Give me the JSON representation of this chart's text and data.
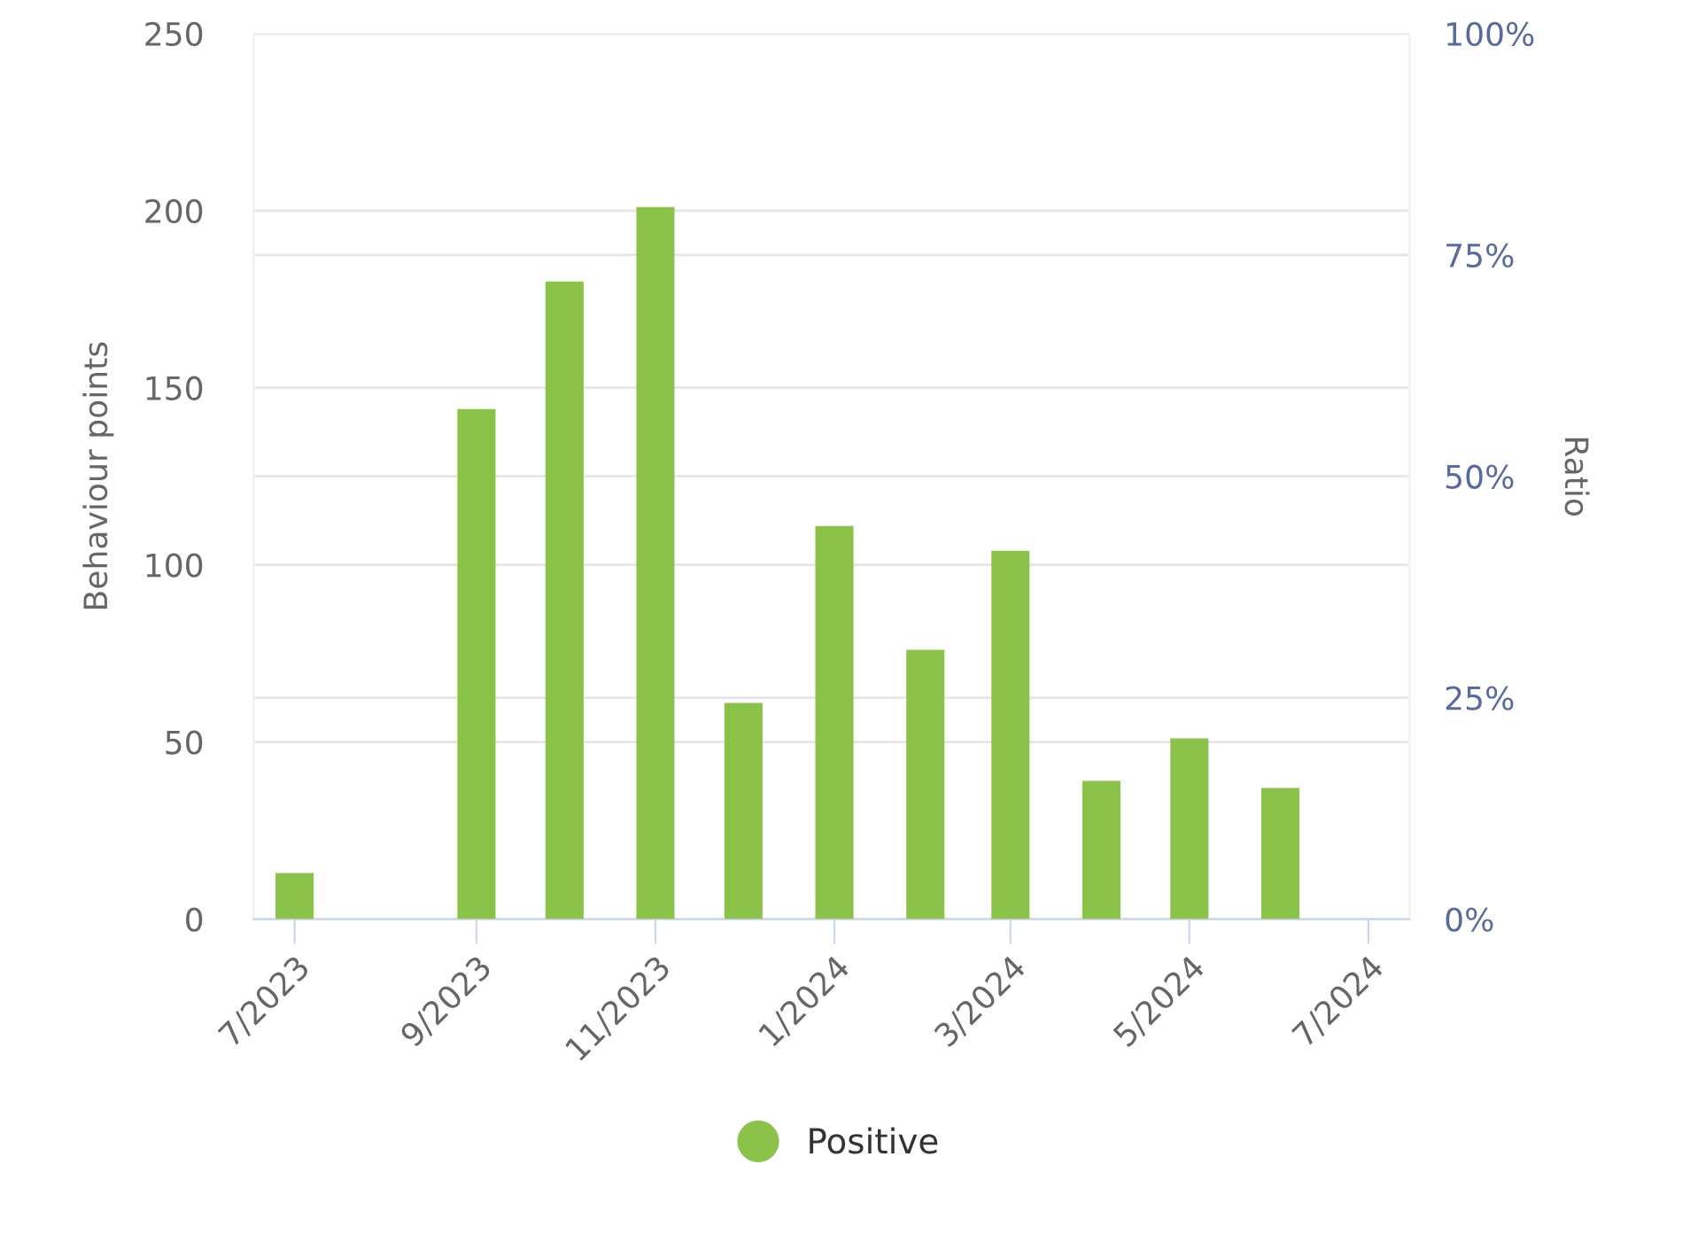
{
  "chart_data": {
    "type": "bar",
    "x": [
      "2023-07",
      "2023-08",
      "2023-09",
      "2023-10",
      "2023-11",
      "2023-12",
      "2024-01",
      "2024-02",
      "2024-03",
      "2024-04",
      "2024-05",
      "2024-06"
    ],
    "series": [
      {
        "name": "Positive",
        "color": "#8bc34a",
        "values": [
          13,
          null,
          144,
          180,
          201,
          61,
          111,
          76,
          104,
          39,
          51,
          37
        ]
      }
    ],
    "ylabel": "Behaviour points",
    "y2label": "Ratio",
    "ylim": [
      0,
      250
    ],
    "yticks": [
      0,
      50,
      100,
      150,
      200,
      250
    ],
    "y2lim": [
      0,
      100
    ],
    "y2ticks": [
      {
        "value": 0,
        "label": "0%"
      },
      {
        "value": 25,
        "label": "25%"
      },
      {
        "value": 50,
        "label": "50%"
      },
      {
        "value": 75,
        "label": "75%"
      },
      {
        "value": 100,
        "label": "100%"
      }
    ],
    "xlim": [
      "2023-06-17",
      "2024-07-15"
    ],
    "xticks": [
      {
        "value": "2023-07",
        "label": "7/2023"
      },
      {
        "value": "2023-09",
        "label": "9/2023"
      },
      {
        "value": "2023-11",
        "label": "11/2023"
      },
      {
        "value": "2024-01",
        "label": "1/2024"
      },
      {
        "value": "2024-03",
        "label": "3/2024"
      },
      {
        "value": "2024-05",
        "label": "5/2024"
      },
      {
        "value": "2024-07",
        "label": "7/2024"
      }
    ],
    "grid": true,
    "legend": "bottom",
    "marker": "circle"
  }
}
